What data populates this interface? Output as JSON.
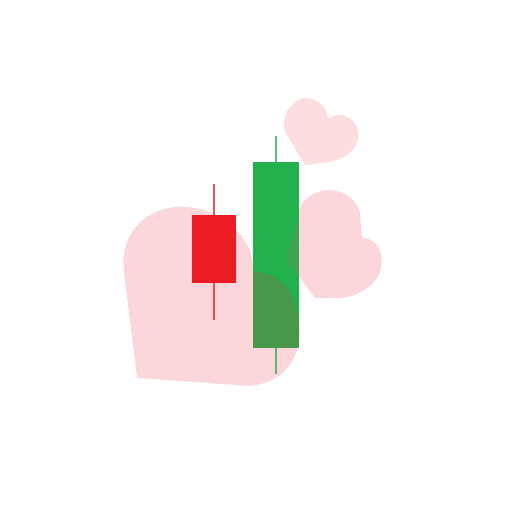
{
  "illustration": {
    "subject": "candlestick-icon-with-hearts",
    "colors": {
      "background": "#ffffff",
      "heart_fill": "#fbd0d4",
      "bearish_candle": "#ec1c24",
      "bullish_candle": "#22b14c"
    },
    "candles": [
      {
        "name": "bearish-candle",
        "direction": "down",
        "color": "#ec1c24"
      },
      {
        "name": "bullish-candle",
        "direction": "up",
        "color": "#22b14c"
      }
    ],
    "hearts": [
      {
        "name": "large-heart",
        "size": "large"
      },
      {
        "name": "medium-heart",
        "size": "medium"
      },
      {
        "name": "small-heart",
        "size": "small"
      }
    ]
  }
}
